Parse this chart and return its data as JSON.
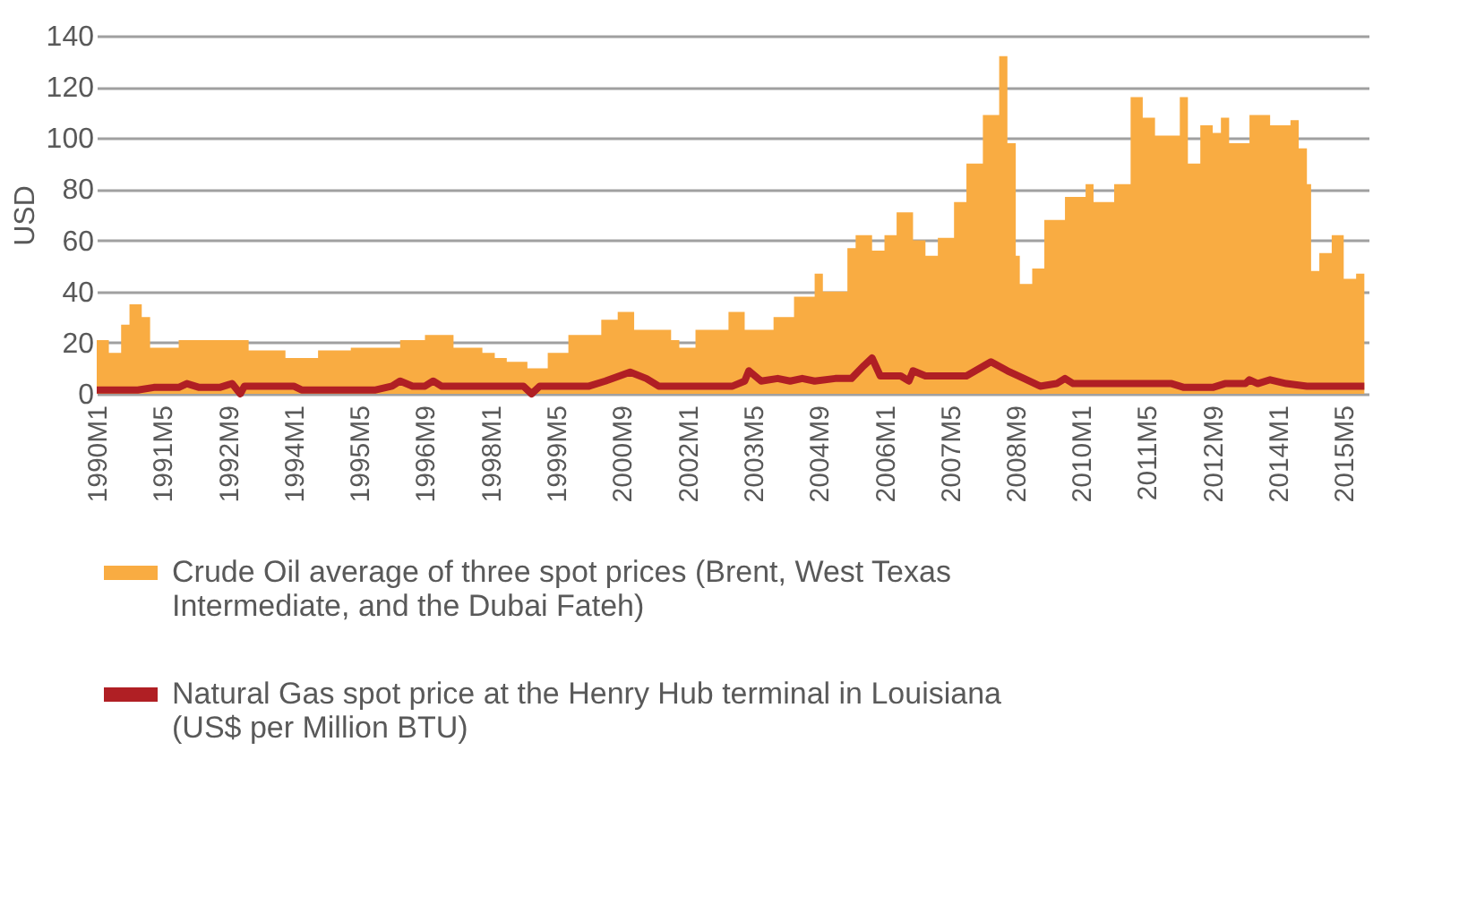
{
  "chart_data": {
    "type": "area",
    "ylabel": "USD",
    "xlim": [
      "1990-01",
      "2015-11"
    ],
    "ylim": [
      0,
      140
    ],
    "yticks": [
      0,
      20,
      40,
      60,
      80,
      100,
      120,
      140
    ],
    "xticks": [
      {
        "value": "1990-01",
        "label": "1990M1"
      },
      {
        "value": "1991-05",
        "label": "1991M5"
      },
      {
        "value": "1992-09",
        "label": "1992M9"
      },
      {
        "value": "1994-01",
        "label": "1994M1"
      },
      {
        "value": "1995-05",
        "label": "1995M5"
      },
      {
        "value": "1996-09",
        "label": "1996M9"
      },
      {
        "value": "1998-01",
        "label": "1998M1"
      },
      {
        "value": "1999-05",
        "label": "1999M5"
      },
      {
        "value": "2000-09",
        "label": "2000M9"
      },
      {
        "value": "2002-01",
        "label": "2002M1"
      },
      {
        "value": "2003-05",
        "label": "2003M5"
      },
      {
        "value": "2004-09",
        "label": "2004M9"
      },
      {
        "value": "2006-01",
        "label": "2006M1"
      },
      {
        "value": "2007-05",
        "label": "2007M5"
      },
      {
        "value": "2008-09",
        "label": "2008M9"
      },
      {
        "value": "2010-01",
        "label": "2010M1"
      },
      {
        "value": "2011-05",
        "label": "2011M5"
      },
      {
        "value": "2012-09",
        "label": "2012M9"
      },
      {
        "value": "2014-01",
        "label": "2014M1"
      },
      {
        "value": "2015-05",
        "label": "2015M5"
      }
    ],
    "grid": "y",
    "legend": "bottom",
    "series": [
      {
        "name": "Crude Oil average of three spot prices (Brent, West Texas Intermediate, and the Dubai Fateh)",
        "color": "#f9ac42",
        "x": [
          "1990-01",
          "1990-04",
          "1990-07",
          "1990-09",
          "1990-12",
          "1991-02",
          "1991-09",
          "1992-05",
          "1993-02",
          "1993-11",
          "1994-07",
          "1995-03",
          "1996-03",
          "1996-09",
          "1996-12",
          "1997-04",
          "1997-11",
          "1998-02",
          "1998-05",
          "1998-10",
          "1999-03",
          "1999-08",
          "2000-04",
          "2000-08",
          "2000-12",
          "2001-09",
          "2001-11",
          "2002-03",
          "2002-11",
          "2003-03",
          "2003-10",
          "2004-03",
          "2004-08",
          "2004-10",
          "2005-04",
          "2005-06",
          "2005-10",
          "2006-01",
          "2006-04",
          "2006-06",
          "2006-08",
          "2006-11",
          "2007-02",
          "2007-06",
          "2007-09",
          "2008-01",
          "2008-05",
          "2008-07",
          "2008-09",
          "2008-10",
          "2009-01",
          "2009-04",
          "2009-09",
          "2010-02",
          "2010-04",
          "2010-09",
          "2011-01",
          "2011-04",
          "2011-07",
          "2012-01",
          "2012-03",
          "2012-06",
          "2012-09",
          "2012-11",
          "2013-01",
          "2013-06",
          "2013-11",
          "2014-04",
          "2014-06",
          "2014-08",
          "2014-09",
          "2014-11",
          "2015-02",
          "2015-05",
          "2015-08",
          "2015-10"
        ],
        "values": [
          21,
          16,
          27,
          35,
          30,
          18,
          21,
          21,
          17,
          14,
          17,
          18,
          21,
          23,
          23,
          18,
          16,
          14,
          12.5,
          10,
          16,
          23,
          29,
          32,
          25,
          21,
          18,
          25,
          32,
          25,
          30,
          38,
          47,
          40,
          57,
          62,
          56,
          62,
          71,
          71,
          60,
          54,
          61,
          75,
          90,
          109,
          132,
          98,
          54,
          43,
          49,
          68,
          77,
          82,
          75,
          82,
          116,
          108,
          101,
          116,
          90,
          105,
          102,
          108,
          98,
          109,
          105,
          107,
          96,
          82,
          48,
          55,
          62,
          45,
          47,
          30
        ]
      },
      {
        "name": "Natural Gas spot price at the Henry Hub terminal in Louisiana (US$ per Million BTU)",
        "type": "line",
        "color": "#b01f24",
        "x": [
          "1990-01",
          "1990-11",
          "1991-03",
          "1991-09",
          "1991-11",
          "1992-02",
          "1992-07",
          "1992-10",
          "1992-12",
          "1993-01",
          "1994-01",
          "1994-03",
          "1995-09",
          "1996-01",
          "1996-03",
          "1996-06",
          "1996-09",
          "1996-11",
          "1997-01",
          "1998-09",
          "1998-11",
          "1999-01",
          "2000-01",
          "2000-05",
          "2000-11",
          "2001-03",
          "2001-06",
          "2002-12",
          "2003-03",
          "2003-04",
          "2003-07",
          "2003-11",
          "2004-02",
          "2004-05",
          "2004-08",
          "2005-01",
          "2005-05",
          "2005-08",
          "2005-10",
          "2005-12",
          "2006-05",
          "2006-07",
          "2006-08",
          "2006-11",
          "2007-09",
          "2008-03",
          "2008-07",
          "2008-11",
          "2009-03",
          "2009-07",
          "2009-09",
          "2009-11",
          "2010-11",
          "2011-11",
          "2012-02",
          "2012-09",
          "2012-12",
          "2013-05",
          "2013-06",
          "2013-08",
          "2013-11",
          "2014-03",
          "2014-08",
          "2015-10"
        ],
        "values": [
          1.5,
          1.5,
          2.5,
          2.5,
          4,
          2.5,
          2.5,
          4,
          0,
          3,
          3,
          1.5,
          1.5,
          3,
          5,
          3,
          3,
          5,
          3,
          3,
          0,
          3,
          3,
          5,
          8.5,
          6,
          3,
          3,
          5,
          9,
          5,
          6,
          5,
          6,
          5,
          6,
          6,
          11,
          14,
          7,
          7,
          5,
          9,
          7,
          7,
          12.5,
          9,
          6,
          3,
          4,
          6,
          4,
          4,
          4,
          2.5,
          2.5,
          4,
          4,
          5.5,
          4,
          5.5,
          4,
          3,
          3
        ]
      }
    ]
  }
}
